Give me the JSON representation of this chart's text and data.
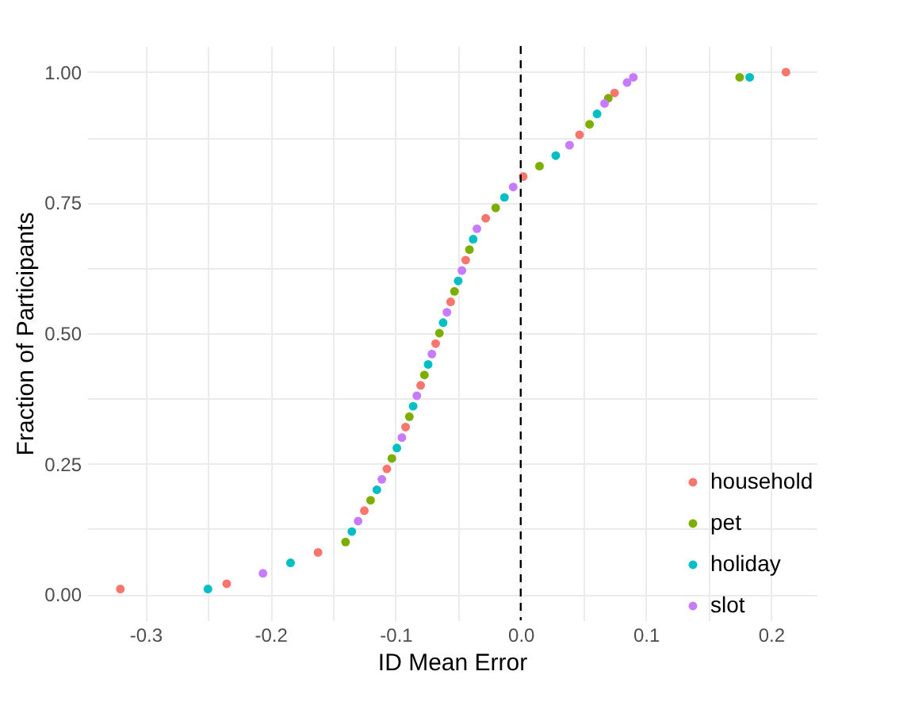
{
  "chart_data": {
    "type": "scatter",
    "xlabel": "ID Mean Error",
    "ylabel": "Fraction of Participants",
    "xlim": [
      -0.3465,
      0.2365
    ],
    "ylim": [
      -0.05,
      1.05
    ],
    "xticks": [
      {
        "value": -0.3,
        "label": "-0.3"
      },
      {
        "value": -0.25,
        "label": null
      },
      {
        "value": -0.2,
        "label": "-0.2"
      },
      {
        "value": -0.15,
        "label": null
      },
      {
        "value": -0.1,
        "label": "-0.1"
      },
      {
        "value": -0.05,
        "label": null
      },
      {
        "value": 0,
        "label": "0.0"
      },
      {
        "value": 0.05,
        "label": null
      },
      {
        "value": 0.1,
        "label": "0.1"
      },
      {
        "value": 0.15,
        "label": null
      },
      {
        "value": 0.2,
        "label": "0.2"
      }
    ],
    "yticks": [
      {
        "value": 0,
        "label": "0.00"
      },
      {
        "value": 0.125,
        "label": null
      },
      {
        "value": 0.25,
        "label": "0.25"
      },
      {
        "value": 0.375,
        "label": null
      },
      {
        "value": 0.5,
        "label": "0.50"
      },
      {
        "value": 0.625,
        "label": null
      },
      {
        "value": 0.75,
        "label": "0.75"
      },
      {
        "value": 0.875,
        "label": null
      },
      {
        "value": 1,
        "label": "1.00"
      }
    ],
    "grid": true,
    "legend": "bottom right",
    "marker": "circle",
    "ref_lines": [
      {
        "axis": "x",
        "value": 0,
        "color": "#000000",
        "line_style": "dashed"
      }
    ],
    "series": [
      {
        "name": "household",
        "color": "#f8766d",
        "x": [
          -0.32,
          -0.235,
          -0.162,
          -0.125,
          -0.107,
          -0.092,
          -0.08,
          -0.068,
          -0.056,
          -0.044,
          -0.028,
          0.002,
          0.047,
          0.075,
          0.212
        ],
        "values": [
          0.01,
          0.02,
          0.08,
          0.16,
          0.24,
          0.32,
          0.4,
          0.48,
          0.56,
          0.64,
          0.72,
          0.8,
          0.88,
          0.96,
          1.0
        ]
      },
      {
        "name": "pet",
        "color": "#7cae00",
        "x": [
          -0.14,
          -0.12,
          -0.103,
          -0.089,
          -0.077,
          -0.065,
          -0.053,
          -0.041,
          -0.02,
          0.015,
          0.055,
          0.07,
          0.175
        ],
        "values": [
          0.1,
          0.18,
          0.26,
          0.34,
          0.42,
          0.5,
          0.58,
          0.66,
          0.74,
          0.82,
          0.9,
          0.95,
          0.99
        ]
      },
      {
        "name": "holiday",
        "color": "#00bfc4",
        "x": [
          -0.25,
          -0.184,
          -0.135,
          -0.115,
          -0.099,
          -0.086,
          -0.074,
          -0.062,
          -0.05,
          -0.038,
          -0.013,
          0.028,
          0.061,
          0.183
        ],
        "values": [
          0.01,
          0.06,
          0.12,
          0.2,
          0.28,
          0.36,
          0.44,
          0.52,
          0.6,
          0.68,
          0.76,
          0.84,
          0.92,
          0.99
        ]
      },
      {
        "name": "slot",
        "color": "#c77cff",
        "x": [
          -0.206,
          -0.13,
          -0.111,
          -0.095,
          -0.083,
          -0.071,
          -0.059,
          -0.047,
          -0.035,
          -0.006,
          0.039,
          0.067,
          0.085,
          0.09
        ],
        "values": [
          0.04,
          0.14,
          0.22,
          0.3,
          0.38,
          0.46,
          0.54,
          0.62,
          0.7,
          0.78,
          0.86,
          0.94,
          0.98,
          0.99
        ]
      }
    ]
  }
}
